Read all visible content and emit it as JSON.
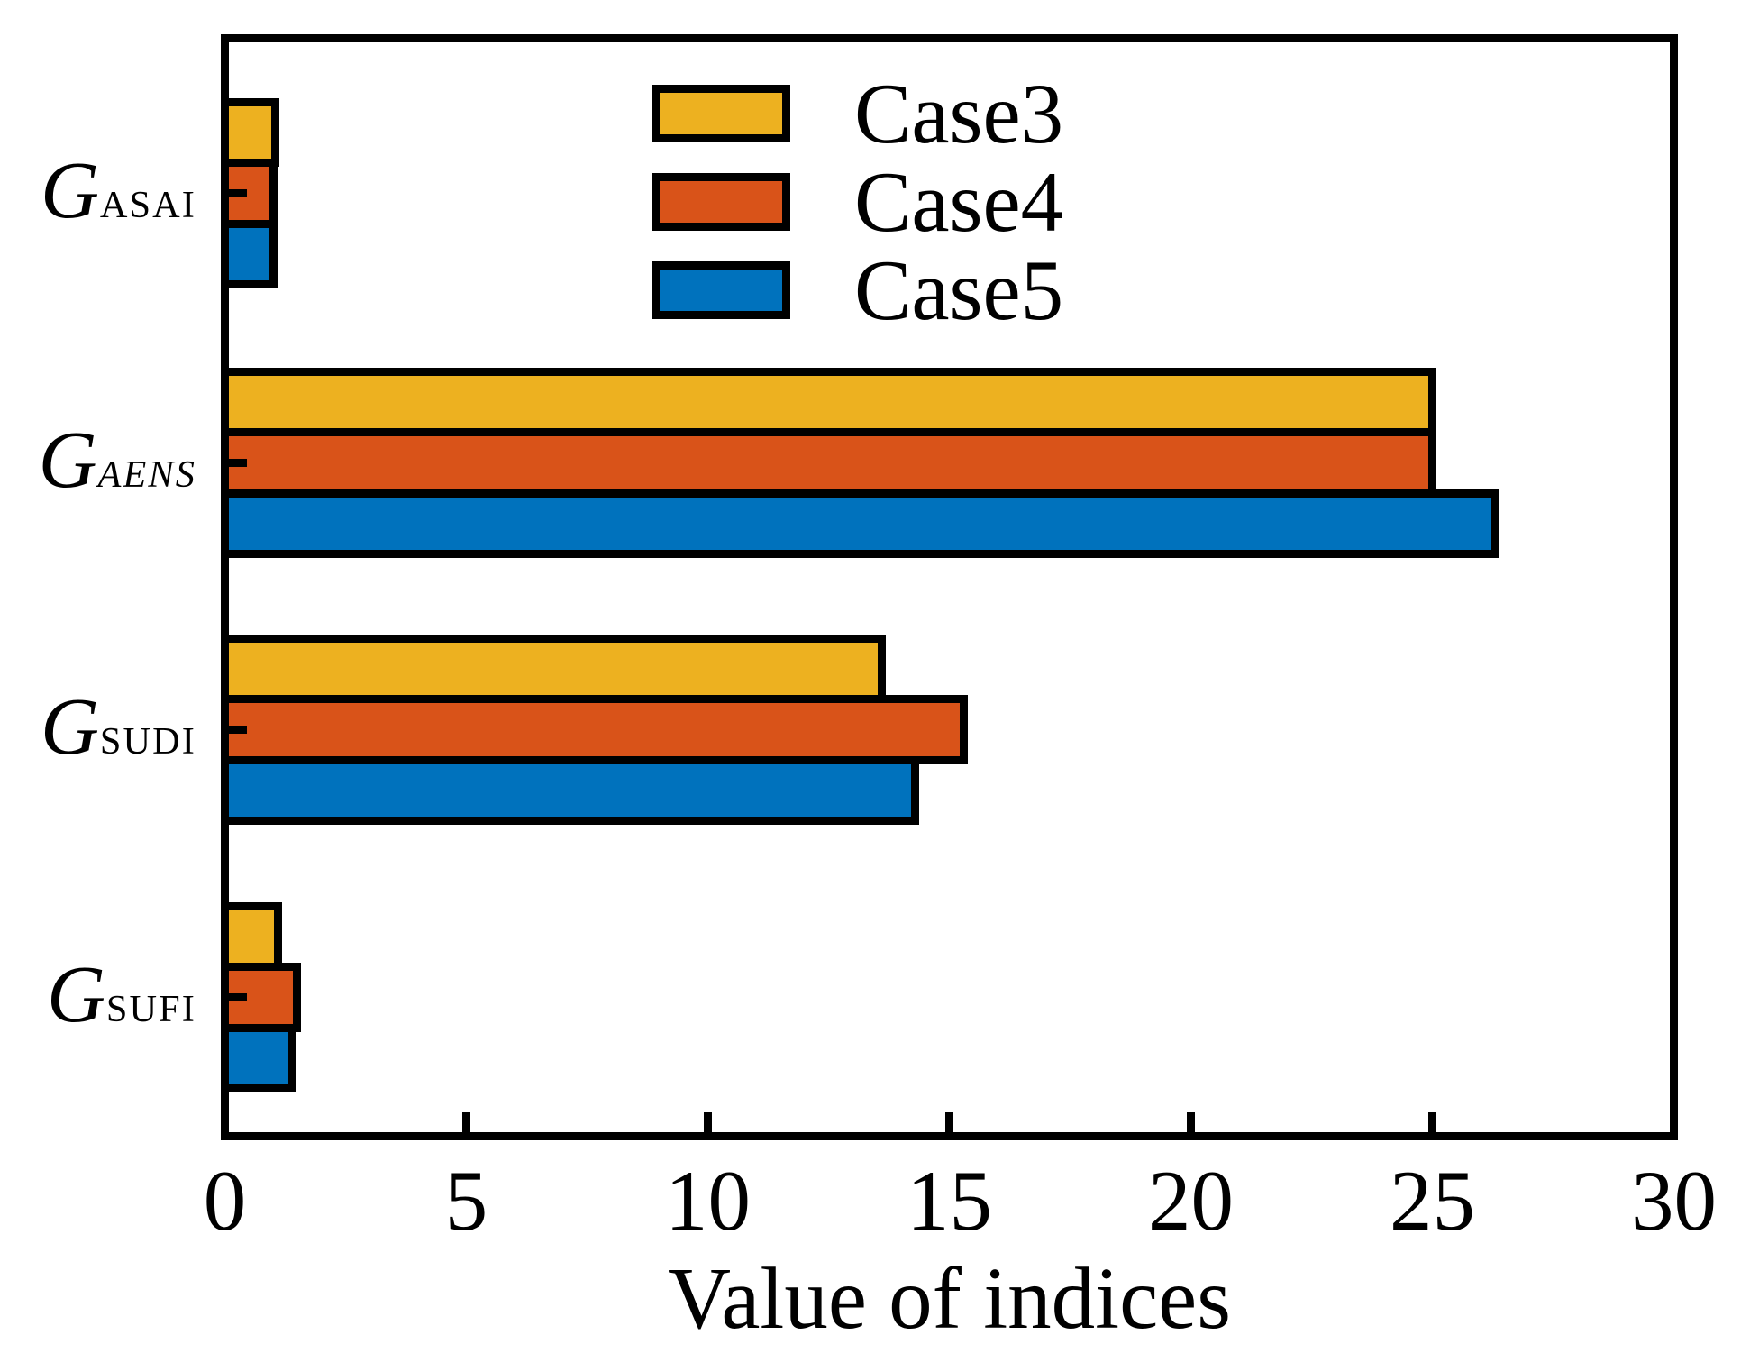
{
  "chart_data": {
    "type": "bar",
    "orientation": "horizontal",
    "title": "",
    "xlabel": "Value of indices",
    "ylabel": "",
    "xlim": [
      0,
      30
    ],
    "xticks": [
      0,
      5,
      10,
      15,
      20,
      25,
      30
    ],
    "grid": false,
    "legend_position": "upper center",
    "legend_frame": false,
    "bar_outline_color": "#000000",
    "categories": [
      {
        "base": "G",
        "sub": "ASAI",
        "sub_italic": false
      },
      {
        "base": "G",
        "sub": "AENS",
        "sub_italic": true
      },
      {
        "base": "G",
        "sub": "SUDI",
        "sub_italic": false
      },
      {
        "base": "G",
        "sub": "SUFI",
        "sub_italic": false
      }
    ],
    "series": [
      {
        "name": "Case3",
        "color": "#EDB120",
        "values": [
          1.05,
          25.0,
          13.6,
          1.1
        ]
      },
      {
        "name": "Case4",
        "color": "#D95319",
        "values": [
          1.0,
          25.0,
          15.3,
          1.5
        ]
      },
      {
        "name": "Case5",
        "color": "#0072BD",
        "values": [
          1.0,
          26.3,
          14.3,
          1.4
        ]
      }
    ]
  }
}
